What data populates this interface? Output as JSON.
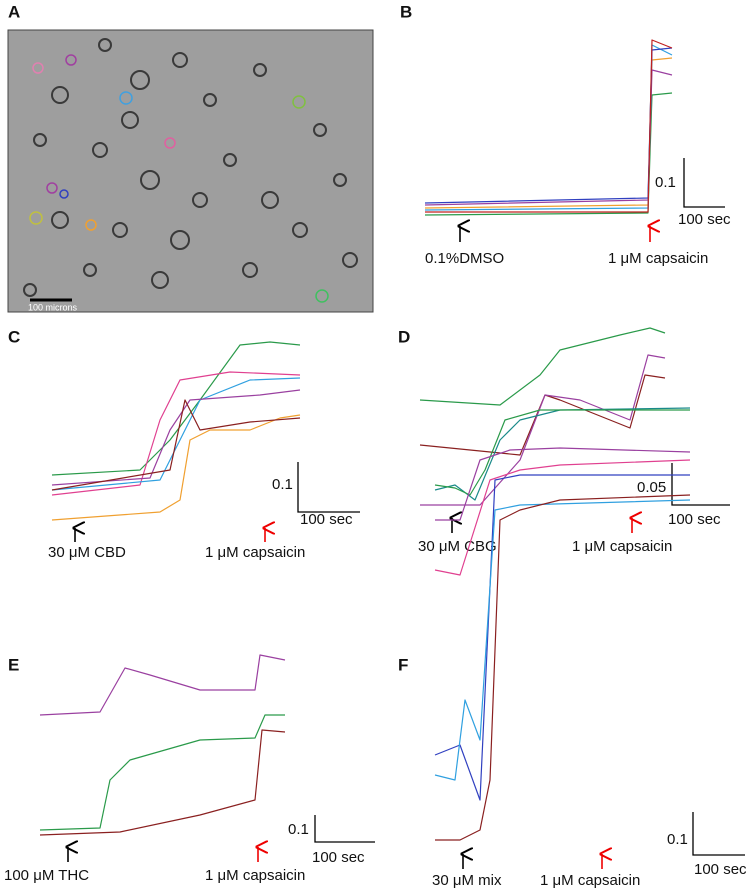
{
  "panels": [
    {
      "label": "A",
      "scale_label": "100 microns"
    },
    {
      "label": "B",
      "scale_y": "0.1",
      "scale_x": "100 sec",
      "treatment": "0.1%DMSO",
      "capsaicin": "1 μM capsaicin"
    },
    {
      "label": "C",
      "scale_y": "0.1",
      "scale_x": "100 sec",
      "treatment": "30 μM CBD",
      "capsaicin": "1 μM capsaicin"
    },
    {
      "label": "D",
      "scale_y": "0.05",
      "scale_x": "100 sec",
      "treatment": "30 μM CBG",
      "capsaicin": "1 μM capsaicin"
    },
    {
      "label": "E",
      "scale_y": "0.1",
      "scale_x": "100 sec",
      "treatment": "100 μM THC",
      "capsaicin": "1 μM capsaicin"
    },
    {
      "label": "F",
      "scale_y": "0.1",
      "scale_x": "100 sec",
      "treatment": "30 μM mix",
      "capsaicin": "1 μM capsaicin"
    }
  ]
}
